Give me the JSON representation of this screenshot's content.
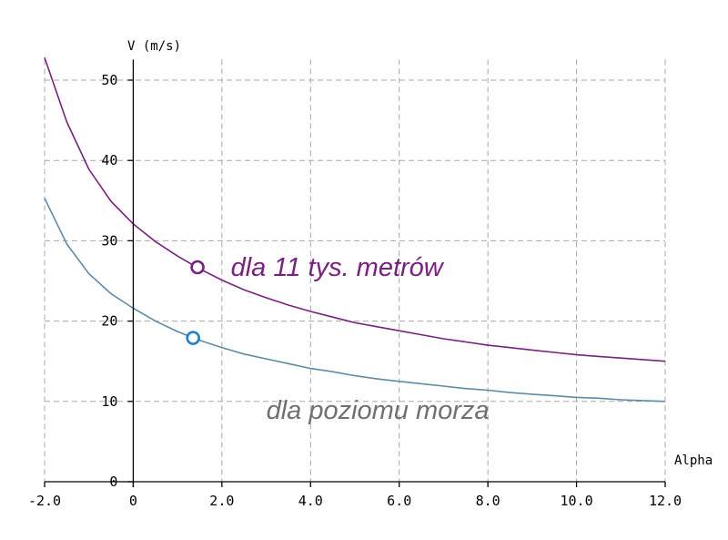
{
  "chart_data": {
    "type": "line",
    "title": "",
    "xlabel": "Alpha",
    "ylabel": "V (m/s)",
    "xlim": [
      -2,
      12
    ],
    "ylim": [
      0,
      52
    ],
    "grid": true,
    "x_ticks": [
      -2,
      0,
      2,
      4,
      6,
      8,
      10,
      12
    ],
    "x_tick_labels": [
      "-2.0",
      "0",
      "2.0",
      "4.0",
      "6.0",
      "8.0",
      "10.0",
      "12.0"
    ],
    "y_ticks": [
      0,
      10,
      20,
      30,
      40,
      50
    ],
    "y_tick_labels": [
      "0",
      "10",
      "20",
      "30",
      "40",
      "50"
    ],
    "series": [
      {
        "name": "dla 11 tys. metrów",
        "color": "#7a2080",
        "x": [
          -2,
          -1.5,
          -1,
          -0.5,
          0,
          0.5,
          1,
          1.5,
          2,
          2.5,
          3,
          3.5,
          4,
          4.5,
          5,
          5.5,
          6,
          6.5,
          7,
          7.5,
          8,
          8.5,
          9,
          9.5,
          10,
          10.5,
          11,
          11.5,
          12
        ],
        "y": [
          52.8,
          44.8,
          38.9,
          34.9,
          32.1,
          29.9,
          28.1,
          26.5,
          25.1,
          23.9,
          22.9,
          22.0,
          21.2,
          20.5,
          19.8,
          19.3,
          18.8,
          18.3,
          17.8,
          17.4,
          17.0,
          16.7,
          16.4,
          16.1,
          15.8,
          15.6,
          15.4,
          15.2,
          15.0
        ]
      },
      {
        "name": "dla poziomu morza",
        "color": "#5f8ba4",
        "x": [
          -2,
          -1.5,
          -1,
          -0.5,
          0,
          0.5,
          1,
          1.5,
          2,
          2.5,
          3,
          3.5,
          4,
          4.5,
          5,
          5.5,
          6,
          6.5,
          7,
          7.5,
          8,
          8.5,
          9,
          9.5,
          10,
          10.5,
          11,
          11.5,
          12
        ],
        "y": [
          35.3,
          29.6,
          25.9,
          23.4,
          21.6,
          20.0,
          18.7,
          17.6,
          16.7,
          15.9,
          15.3,
          14.7,
          14.1,
          13.7,
          13.2,
          12.8,
          12.5,
          12.2,
          11.9,
          11.6,
          11.4,
          11.1,
          10.9,
          10.7,
          10.5,
          10.4,
          10.2,
          10.1,
          10.0
        ]
      }
    ],
    "markers": [
      {
        "series": "dla 11 tys. metrów",
        "x": 1.45,
        "y": 26.7,
        "color": "#7a2080"
      },
      {
        "series": "dla poziomu morza",
        "x": 1.35,
        "y": 17.9,
        "color": "#1e7fd6"
      }
    ],
    "annotations": [
      {
        "text": "dla 11 tys. metrów",
        "x": 2.2,
        "y": 25.6,
        "color": "#7a2080"
      },
      {
        "text": "dla poziomu morza",
        "x": 3.0,
        "y": 7.8,
        "color": "#707070"
      }
    ]
  }
}
